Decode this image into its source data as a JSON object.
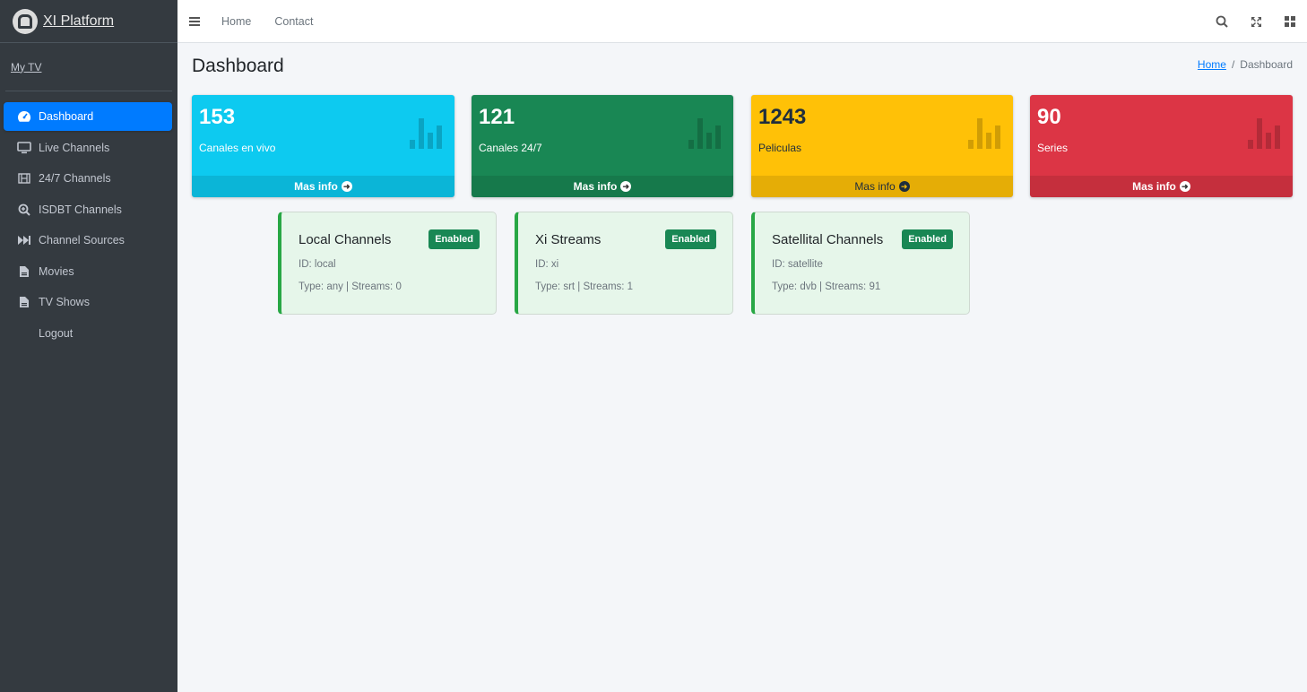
{
  "brand": {
    "name": "XI Platform",
    "logo_icon": "platform-logo-icon"
  },
  "user": {
    "name": "My TV"
  },
  "sidebar": {
    "items": [
      {
        "label": "Dashboard",
        "icon": "speedometer-icon",
        "active": true
      },
      {
        "label": "Live Channels",
        "icon": "monitor-icon"
      },
      {
        "label": "24/7 Channels",
        "icon": "film-icon"
      },
      {
        "label": "ISDBT Channels",
        "icon": "search-plus-icon"
      },
      {
        "label": "Channel Sources",
        "icon": "fast-forward-icon"
      },
      {
        "label": "Movies",
        "icon": "file-icon"
      },
      {
        "label": "TV Shows",
        "icon": "file-icon"
      },
      {
        "label": "Logout",
        "icon": ""
      }
    ]
  },
  "topbar": {
    "links": [
      "Home",
      "Contact"
    ],
    "icons": [
      "search-icon",
      "expand-icon",
      "grid-icon"
    ]
  },
  "page": {
    "title": "Dashboard",
    "breadcrumb": {
      "home": "Home",
      "separator": "/",
      "current": "Dashboard"
    }
  },
  "stats": [
    {
      "value": "153",
      "label": "Canales en vivo",
      "link": "Mas info",
      "color": "#0dcaf0"
    },
    {
      "value": "121",
      "label": "Canales 24/7",
      "link": "Mas info",
      "color": "#198754"
    },
    {
      "value": "1243",
      "label": "Peliculas",
      "link": "Mas info",
      "color": "#ffc107"
    },
    {
      "value": "90",
      "label": "Series",
      "link": "Mas info",
      "color": "#dc3545"
    }
  ],
  "sources": [
    {
      "name": "Local Channels",
      "status": "Enabled",
      "id": "ID: local",
      "details": "Type: any | Streams: 0"
    },
    {
      "name": "Xi Streams",
      "status": "Enabled",
      "id": "ID: xi",
      "details": "Type: srt | Streams: 1"
    },
    {
      "name": "Satellital Channels",
      "status": "Enabled",
      "id": "ID: satellite",
      "details": "Type: dvb | Streams: 91"
    }
  ]
}
